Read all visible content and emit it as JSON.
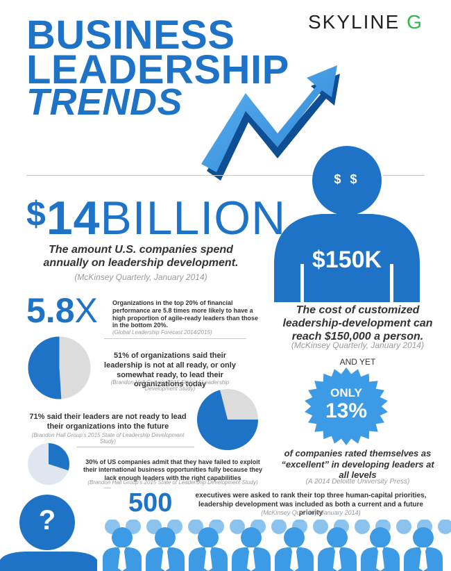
{
  "header": {
    "title_line1": "BUSINESS",
    "title_line2": "LEADERSHIP",
    "title_line3": "TRENDS",
    "logo_text": "SKYLINE",
    "logo_letter": "G"
  },
  "stat_billion": {
    "dollar": "$",
    "number": "14",
    "word": "BILLION",
    "description": "The amount U.S. companies spend annually on leadership development.",
    "source": "(McKinsey Quarterly, January 2014)"
  },
  "stat_58x": {
    "number": "5.8",
    "suffix": "X",
    "description": "Organizations in the top 20% of financial performance are 5.8 times more likely to have a high proportion of agile-ready leaders than those in the bottom 20%.",
    "source": "(Global Leadership Forecast 2014/2015)"
  },
  "stat_51": {
    "percent": 51,
    "description": "51% of organizations said their leadership is not at all ready, or only somewhat ready, to lead their organizations today",
    "source": "(Brandon Hall Group's 2015 State of Leadership Development Study)"
  },
  "stat_71": {
    "percent": 71,
    "description": "71% said their leaders are not ready to lead their organizations into the future",
    "source": "(Brandon Hall Group's 2015 State of Leadership Development Study)"
  },
  "stat_30": {
    "percent": 30,
    "description": "30% of US companies admit that they have failed to exploit their international business opportunities fully because they lack enough leaders with the right capabilities",
    "source": "(Brandon Hall Group's 2015 State of Leadership Development Study)"
  },
  "stat_150k": {
    "eyes": "$ $",
    "value": "$150K",
    "description": "The cost of customized leadership-development can reach $150,000 a person.",
    "source": "(McKinsey Quarterly, January 2014)"
  },
  "and_yet": "AND YET",
  "stat_13": {
    "label": "ONLY",
    "value": "13%",
    "description": "of companies rated themselves as “excellent” in developing leaders at all levels",
    "source": "(A 2014 Deloitte University Press)"
  },
  "stat_500": {
    "number": "500",
    "description": "executives were asked to rank their top three human-capital priorities, leadership development was included as both a current and a future priority",
    "source": "(McKinsey Quarterly, January 2014)"
  },
  "question_mark": "?",
  "colors": {
    "primary_blue": "#1e73c7",
    "light_blue": "#3d9be6",
    "pie_gray": "#dcdcdc",
    "logo_green": "#2db84b"
  }
}
